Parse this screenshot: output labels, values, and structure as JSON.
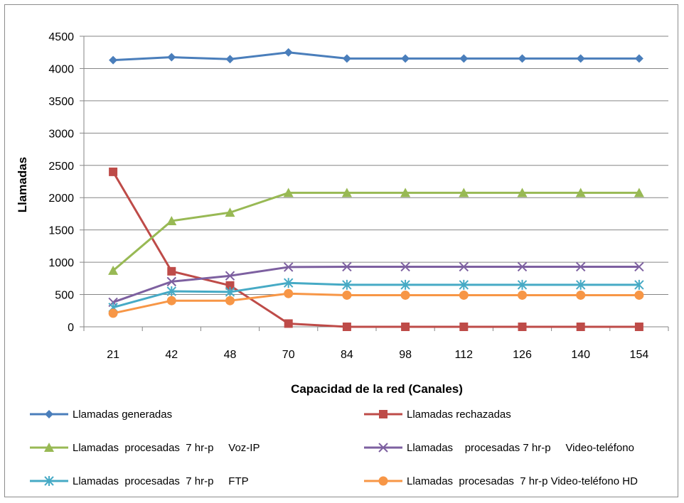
{
  "chart_data": {
    "type": "line",
    "title": "",
    "xlabel": "Capacidad de la red   (Canales)",
    "ylabel": "Llamadas",
    "categories": [
      "21",
      "42",
      "48",
      "70",
      "84",
      "98",
      "112",
      "126",
      "140",
      "154"
    ],
    "ylim": [
      0,
      4500
    ],
    "yticks": [
      0,
      500,
      1000,
      1500,
      2000,
      2500,
      3000,
      3500,
      4000,
      4500
    ],
    "grid": "horizontal",
    "legend_position": "bottom",
    "series": [
      {
        "name": "Llamadas generadas",
        "color": "#4a7ebb",
        "marker": "diamond",
        "values": [
          4130,
          4175,
          4145,
          4250,
          4155,
          4155,
          4155,
          4155,
          4155,
          4155
        ]
      },
      {
        "name": "Llamadas rechazadas",
        "color": "#be4b48",
        "marker": "square",
        "values": [
          2400,
          860,
          640,
          50,
          0,
          0,
          0,
          0,
          0,
          0
        ]
      },
      {
        "name": "Llamadas  procesadas  7 hr-p     Voz-IP",
        "color": "#98b954",
        "marker": "triangle",
        "values": [
          870,
          1640,
          1770,
          2075,
          2075,
          2075,
          2075,
          2075,
          2075,
          2075
        ]
      },
      {
        "name": "Llamadas    procesadas 7 hr-p     Video-teléfono",
        "color": "#7d60a0",
        "marker": "x",
        "values": [
          380,
          700,
          790,
          925,
          930,
          930,
          930,
          930,
          930,
          930
        ]
      },
      {
        "name": "Llamadas  procesadas  7 hr-p     FTP",
        "color": "#46aac5",
        "marker": "asterisk",
        "values": [
          300,
          550,
          540,
          680,
          650,
          650,
          650,
          650,
          650,
          650
        ]
      },
      {
        "name": "Llamadas  procesadas  7 hr-p Video-teléfono HD",
        "color": "#f79646",
        "marker": "circle",
        "values": [
          210,
          405,
          405,
          515,
          490,
          490,
          490,
          490,
          490,
          490
        ]
      }
    ]
  }
}
